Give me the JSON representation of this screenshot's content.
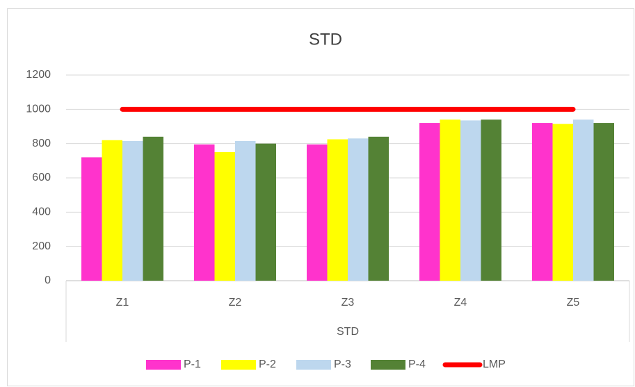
{
  "chart_data": {
    "type": "bar",
    "title": "STD",
    "categories": [
      "Z1",
      "Z2",
      "Z3",
      "Z4",
      "Z5"
    ],
    "x_group_label": "STD",
    "series": [
      {
        "name": "P-1",
        "color": "#ff33cc",
        "values": [
          720,
          795,
          795,
          920,
          920
        ]
      },
      {
        "name": "P-2",
        "color": "#ffff00",
        "values": [
          820,
          750,
          825,
          940,
          915
        ]
      },
      {
        "name": "P-3",
        "color": "#bdd7ee",
        "values": [
          815,
          815,
          830,
          935,
          940
        ]
      },
      {
        "name": "P-4",
        "color": "#548235",
        "values": [
          840,
          800,
          840,
          940,
          920
        ]
      },
      {
        "name": "LMP",
        "color": "#ff0000",
        "type": "line",
        "values": [
          1000,
          1000,
          1000,
          1000,
          1000
        ]
      }
    ],
    "ylim": [
      0,
      1200
    ],
    "yticks": [
      0,
      200,
      400,
      600,
      800,
      1000,
      1200
    ],
    "grid": true,
    "legend": "bottom"
  }
}
